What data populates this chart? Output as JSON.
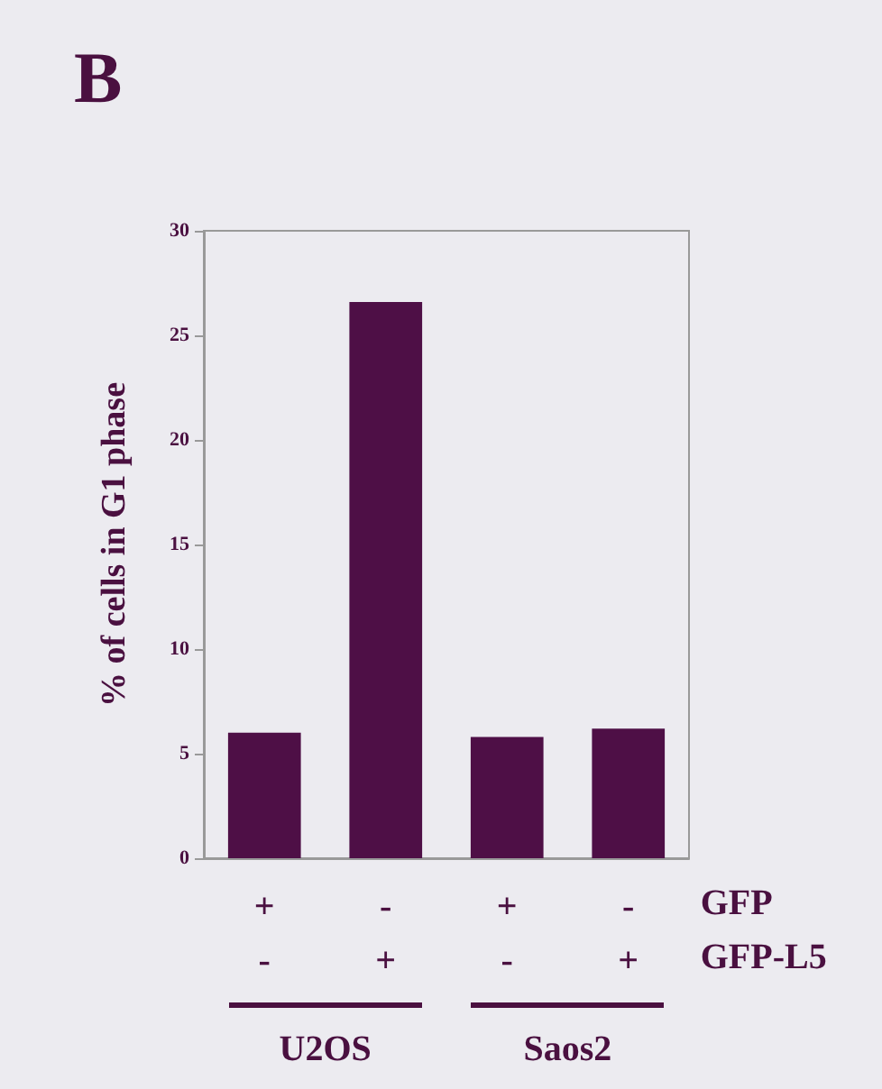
{
  "chart_data": {
    "type": "bar",
    "title": "B",
    "ylabel": "% of cells in G1 phase",
    "categories": [
      "+\n-",
      "-\n+",
      "+\n-",
      "-\n+"
    ],
    "values": [
      6.0,
      26.6,
      5.8,
      6.2
    ],
    "color": "#4e0f46",
    "ylim": [
      0,
      30
    ],
    "yticks": [
      0,
      5,
      10,
      15,
      20,
      25,
      30
    ],
    "grid": false,
    "annotations": [
      "GFP",
      "GFP-L5",
      "U2OS",
      "Saos2"
    ]
  }
}
